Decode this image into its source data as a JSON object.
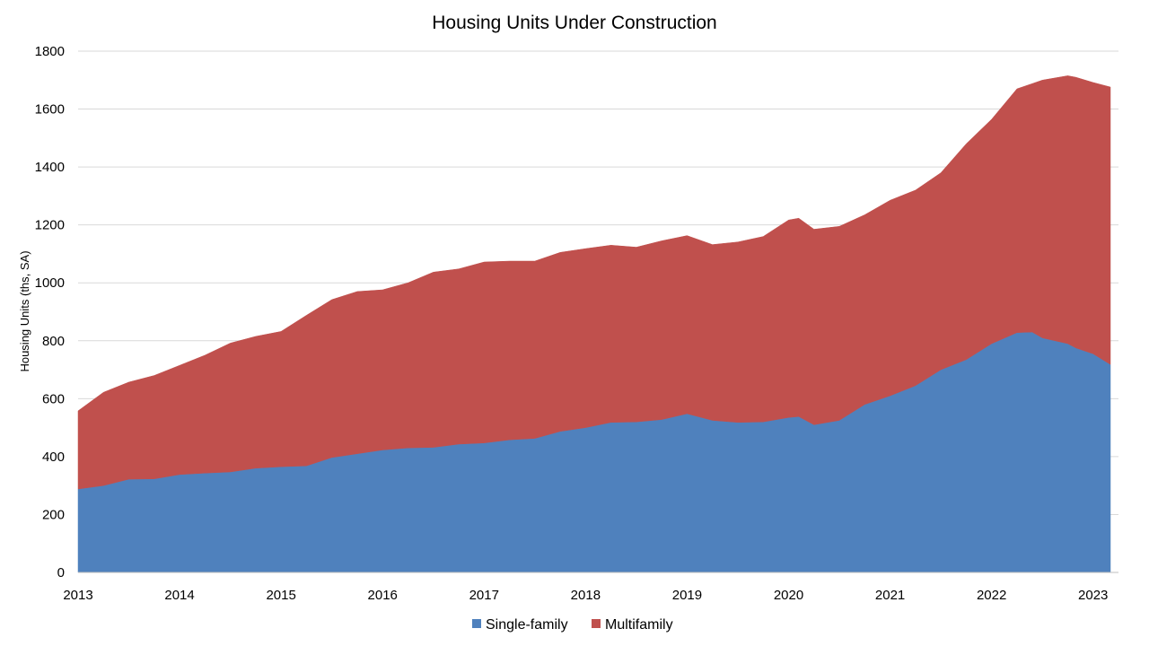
{
  "chart_data": {
    "type": "area",
    "stacked": true,
    "title": "Housing Units Under Construction",
    "ylabel": "Housing Units (ths, SA)",
    "xlabel": "",
    "ylim": [
      0,
      1800
    ],
    "yticks": [
      0,
      200,
      400,
      600,
      800,
      1000,
      1200,
      1400,
      1600,
      1800
    ],
    "xlim": [
      2013,
      2023.25
    ],
    "xticks": [
      2013,
      2014,
      2015,
      2016,
      2017,
      2018,
      2019,
      2020,
      2021,
      2022,
      2023
    ],
    "grid": true,
    "legend": "bottom",
    "x": [
      2013.0,
      2013.25,
      2013.5,
      2013.75,
      2014.0,
      2014.25,
      2014.5,
      2014.75,
      2015.0,
      2015.25,
      2015.5,
      2015.75,
      2016.0,
      2016.25,
      2016.5,
      2016.75,
      2017.0,
      2017.25,
      2017.5,
      2017.75,
      2018.0,
      2018.25,
      2018.5,
      2018.75,
      2019.0,
      2019.25,
      2019.5,
      2019.75,
      2020.0,
      2020.1,
      2020.25,
      2020.5,
      2020.75,
      2021.0,
      2021.25,
      2021.5,
      2021.75,
      2022.0,
      2022.25,
      2022.4,
      2022.5,
      2022.75,
      2022.83,
      2023.0,
      2023.17
    ],
    "series": [
      {
        "name": "Single-family",
        "color": "#4f81bd",
        "values": [
          288,
          300,
          322,
          323,
          338,
          343,
          347,
          360,
          365,
          368,
          397,
          410,
          423,
          430,
          432,
          443,
          447,
          458,
          463,
          487,
          500,
          518,
          520,
          528,
          548,
          525,
          518,
          520,
          535,
          538,
          510,
          525,
          580,
          610,
          645,
          700,
          735,
          790,
          828,
          830,
          810,
          790,
          775,
          755,
          718
        ]
      },
      {
        "name": "Multifamily",
        "color": "#c0504d",
        "values": [
          270,
          322,
          335,
          357,
          377,
          407,
          445,
          455,
          467,
          520,
          545,
          560,
          553,
          570,
          605,
          605,
          625,
          617,
          612,
          618,
          618,
          612,
          603,
          617,
          615,
          607,
          623,
          640,
          682,
          685,
          675,
          670,
          655,
          675,
          675,
          680,
          745,
          775,
          842,
          858,
          890,
          925,
          935,
          937,
          958
        ]
      }
    ]
  }
}
